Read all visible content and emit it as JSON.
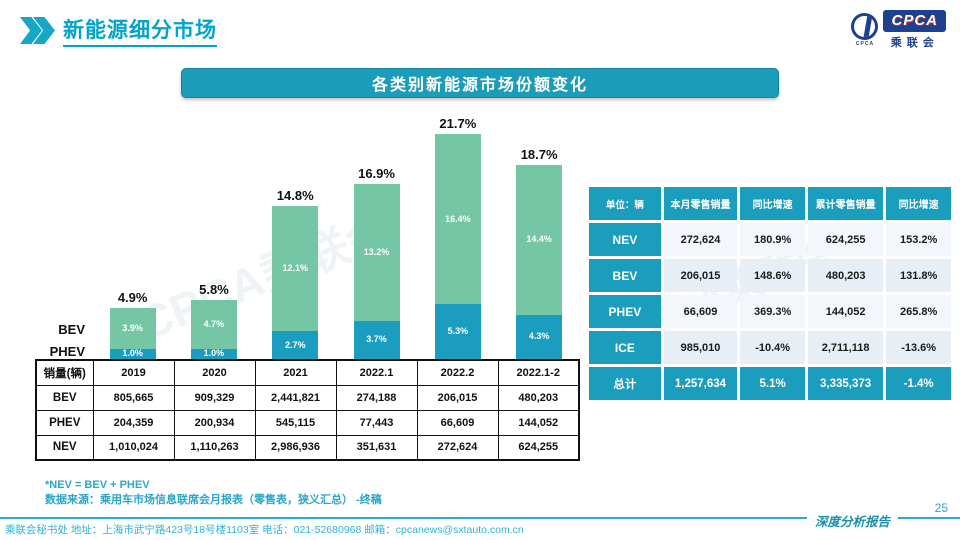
{
  "header": {
    "title": "新能源细分市场",
    "logo": {
      "acronym": "CPCA",
      "org_name": "乘联会",
      "emblem_text": "CPCA"
    }
  },
  "chart_title": "各类别新能源市场份额变化",
  "watermark": "CPCA乘联会",
  "chart_data": {
    "type": "bar",
    "stacked": true,
    "title": "各类别新能源市场份额变化",
    "categories": [
      "2019",
      "2020",
      "2021",
      "2022.1",
      "2022.2",
      "2022.1-2"
    ],
    "series": [
      {
        "name": "PHEV",
        "color": "#1b9dc0",
        "values": [
          1.0,
          1.0,
          2.7,
          3.7,
          5.3,
          4.3
        ]
      },
      {
        "name": "BEV",
        "color": "#74c6a4",
        "values": [
          3.9,
          4.7,
          12.1,
          13.2,
          16.4,
          14.4
        ]
      }
    ],
    "totals": [
      4.9,
      5.8,
      14.8,
      16.9,
      21.7,
      18.7
    ],
    "unit": "%",
    "ylim": [
      0,
      23
    ],
    "grid": false,
    "legend_position": "left-of-bars"
  },
  "sales_table": {
    "header": [
      "销量(辆)",
      "2019",
      "2020",
      "2021",
      "2022.1",
      "2022.2",
      "2022.1-2"
    ],
    "rows": [
      [
        "BEV",
        "805,665",
        "909,329",
        "2,441,821",
        "274,188",
        "206,015",
        "480,203"
      ],
      [
        "PHEV",
        "204,359",
        "200,934",
        "545,115",
        "77,443",
        "66,609",
        "144,052"
      ],
      [
        "NEV",
        "1,010,024",
        "1,110,263",
        "2,986,936",
        "351,631",
        "272,624",
        "624,255"
      ]
    ]
  },
  "summary_table": {
    "header": [
      "单位：辆",
      "本月零售销量",
      "同比增速",
      "累计零售销量",
      "同比增速"
    ],
    "col_widths": [
      "20.5%",
      "21%",
      "18.5%",
      "21.5%",
      "18.5%"
    ],
    "rows": [
      {
        "label": "NEV",
        "values": [
          "272,624",
          "180.9%",
          "624,255",
          "153.2%"
        ],
        "total": false
      },
      {
        "label": "BEV",
        "values": [
          "206,015",
          "148.6%",
          "480,203",
          "131.8%"
        ],
        "total": false
      },
      {
        "label": "PHEV",
        "values": [
          "66,609",
          "369.3%",
          "144,052",
          "265.8%"
        ],
        "total": false
      },
      {
        "label": "ICE",
        "values": [
          "985,010",
          "-10.4%",
          "2,711,118",
          "-13.6%"
        ],
        "total": false
      },
      {
        "label": "总计",
        "values": [
          "1,257,634",
          "5.1%",
          "3,335,373",
          "-1.4%"
        ],
        "total": true
      }
    ]
  },
  "notes": [
    "*NEV = BEV + PHEV",
    "数据来源：乘用车市场信息联席会月报表（零售表，狭义汇总） -终稿"
  ],
  "footer": {
    "left": "乘联会秘书处   地址：上海市武宁路423号18号楼1103室  电话：021-52680968   邮箱：cpcanews@sxtauto.com.cn",
    "report_label": "深度分析报告",
    "page": "25"
  }
}
